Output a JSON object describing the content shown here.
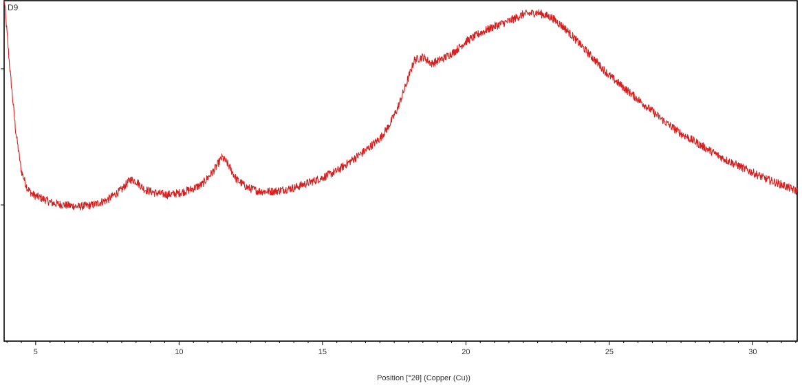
{
  "chart_data": {
    "type": "line",
    "title": "",
    "sample_label": "D9",
    "xlabel": "Position [°2θ] (Copper (Cu))",
    "ylabel": "",
    "xlim": [
      3.9,
      31.55
    ],
    "ylim": [
      0,
      100
    ],
    "grid": false,
    "legend": "none",
    "x_ticks": [
      5,
      10,
      15,
      20,
      25,
      30
    ],
    "x_tick_labels": [
      "5",
      "10",
      "15",
      "20",
      "25",
      "30"
    ],
    "x_minor_step": 0.5,
    "y_ticks_unlabeled": [
      40,
      80
    ],
    "line_color": "#d62020",
    "noise_amplitude": 1.2,
    "series": [
      {
        "x": [
          3.9,
          4.1,
          4.3,
          4.5,
          4.7,
          4.9,
          5.2,
          5.6,
          6.0,
          6.5,
          7.0,
          7.5,
          8.0,
          8.3,
          8.5,
          8.8,
          9.2,
          9.6,
          10.0,
          10.4,
          10.8,
          11.2,
          11.5,
          11.7,
          12.0,
          12.4,
          12.8,
          13.3,
          14.0,
          14.5,
          15.0,
          15.5,
          16.0,
          16.5,
          17.0,
          17.3,
          17.6,
          17.9,
          18.2,
          18.5,
          18.8,
          19.2,
          19.6,
          20.0,
          20.5,
          21.0,
          21.5,
          22.0,
          22.5,
          23.0,
          23.5,
          24.0,
          24.5,
          25.0,
          25.5,
          26.0,
          26.5,
          27.0,
          27.5,
          28.0,
          28.5,
          29.0,
          29.5,
          30.0,
          30.5,
          31.0,
          31.55
        ],
        "y": [
          101,
          80,
          62,
          50,
          45,
          43,
          42,
          40.5,
          40,
          39.5,
          40,
          41.5,
          44.5,
          47.5,
          47,
          44.5,
          43.5,
          43,
          43.5,
          44.5,
          46,
          50,
          54,
          52,
          47.5,
          45,
          44,
          44,
          45,
          46.5,
          48,
          50,
          53,
          56,
          59.5,
          63,
          68,
          75,
          82.5,
          83.5,
          81.5,
          83,
          85,
          88,
          90.5,
          92.5,
          94,
          96,
          96.5,
          95,
          91.5,
          87,
          82.5,
          78,
          74.5,
          71,
          67.5,
          64,
          61,
          58.5,
          56,
          53.5,
          51.5,
          49.5,
          47.5,
          46,
          44
        ]
      }
    ]
  }
}
